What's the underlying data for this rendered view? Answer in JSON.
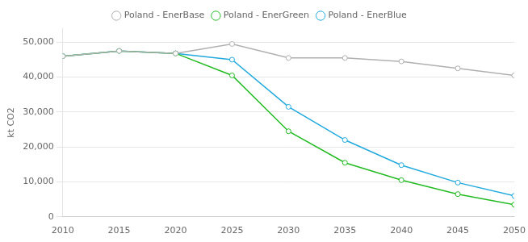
{
  "chart_data": {
    "type": "line",
    "ylabel": "kt CO2",
    "x": [
      2010,
      2015,
      2020,
      2025,
      2030,
      2035,
      2040,
      2045,
      2050
    ],
    "series": [
      {
        "name": "Poland - EnerBase",
        "color": "#b0b0b0",
        "values": [
          46000,
          47500,
          46800,
          49500,
          45500,
          45500,
          44500,
          42500,
          40500
        ]
      },
      {
        "name": "Poland - EnerGreen",
        "color": "#22bb22",
        "values": [
          46000,
          47500,
          46800,
          40500,
          24500,
          15500,
          10500,
          6500,
          3500
        ]
      },
      {
        "name": "Poland - EnerBlue",
        "color": "#22aadd",
        "values": [
          46000,
          47500,
          46800,
          45000,
          31500,
          22000,
          14800,
          9800,
          6000
        ]
      }
    ],
    "xlim": [
      2010,
      2050
    ],
    "xticks": [
      2010,
      2015,
      2020,
      2025,
      2030,
      2035,
      2040,
      2045,
      2050
    ],
    "ylim": [
      0,
      54000
    ],
    "yticks": [
      0,
      {
        "value": 10000,
        "label": "10,000"
      },
      {
        "value": 20000,
        "label": "20,000"
      },
      {
        "value": 30000,
        "label": "30,000"
      },
      {
        "value": 40000,
        "label": "40,000"
      },
      {
        "value": 50000,
        "label": "50,000"
      }
    ],
    "grid": "y",
    "legend": "top",
    "marker": "circle"
  }
}
